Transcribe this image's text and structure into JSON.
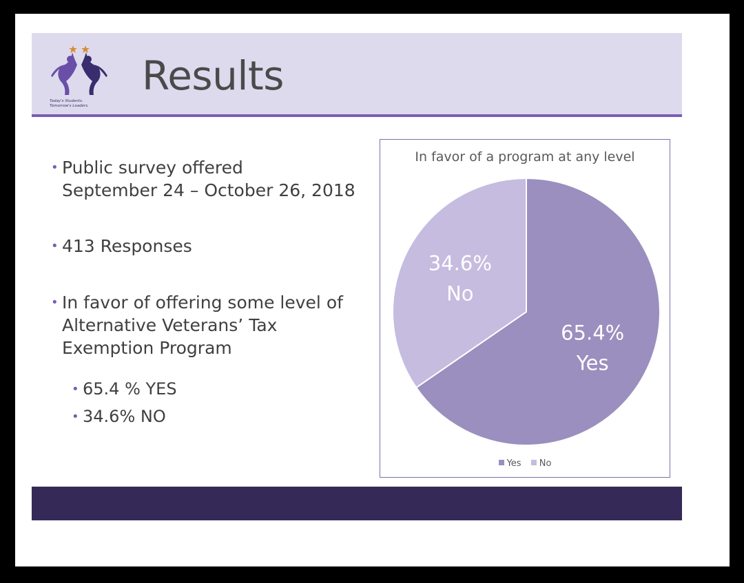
{
  "slide": {
    "title": "Results",
    "logo": {
      "tagline_line1": "Today's Students.",
      "tagline_line2": "Tomorrow's Leaders."
    },
    "bullets": [
      {
        "level": 1,
        "lines": [
          "Public survey offered",
          "September 24 – October 26, 2018"
        ]
      },
      {
        "level": 1,
        "lines": [
          "413 Responses"
        ]
      },
      {
        "level": 1,
        "lines": [
          "In favor of offering some level of",
          "Alternative Veterans’ Tax",
          "Exemption Program"
        ]
      },
      {
        "level": 2,
        "lines": [
          "65.4 % YES"
        ]
      },
      {
        "level": 2,
        "lines": [
          "34.6% NO"
        ]
      }
    ]
  },
  "colors": {
    "header_band": "#dedaee",
    "accent": "#7b5cb3",
    "footer": "#352a57",
    "yes": "#9a8fbe",
    "no": "#c5bcdf"
  },
  "chart_data": {
    "type": "pie",
    "title": "In favor of a program at any level",
    "slices": [
      {
        "name": "Yes",
        "value": 65.4,
        "label_pct": "65.4%",
        "label_name": "Yes",
        "color": "#9a8fbe"
      },
      {
        "name": "No",
        "value": 34.6,
        "label_pct": "34.6%",
        "label_name": "No",
        "color": "#c5bcdf"
      }
    ],
    "legend": [
      "Yes",
      "No"
    ],
    "legend_position": "bottom",
    "start_angle": "12 o'clock",
    "direction": "clockwise"
  }
}
